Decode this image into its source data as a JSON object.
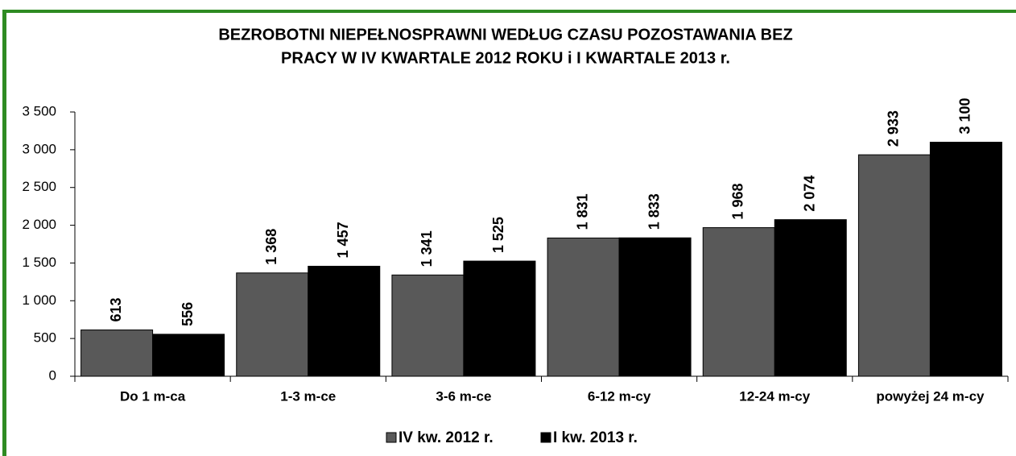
{
  "chart_data": {
    "type": "bar",
    "title": [
      "BEZROBOTNI NIEPEŁNOSPRAWNI WEDŁUG  CZASU POZOSTAWANIA BEZ",
      "PRACY W IV KWARTALE 2012 ROKU i I KWARTALE 2013 r."
    ],
    "categories": [
      "Do 1 m-ca",
      "1-3 m-ce",
      "3-6 m-ce",
      "6-12 m-cy",
      "12-24 m-cy",
      "powyżej 24 m-cy"
    ],
    "series": [
      {
        "name": "IV kw. 2012 r.",
        "color": "#595959",
        "values": [
          613,
          1368,
          1341,
          1831,
          1968,
          2933
        ],
        "value_labels": [
          "613",
          "1 368",
          "1 341",
          "1 831",
          "1 968",
          "2 933"
        ]
      },
      {
        "name": "I kw. 2013 r.",
        "color": "#000000",
        "values": [
          556,
          1457,
          1525,
          1833,
          2074,
          3100
        ],
        "value_labels": [
          "556",
          "1 457",
          "1 525",
          "1 833",
          "2 074",
          "3 100"
        ]
      }
    ],
    "ylim": [
      0,
      3500
    ],
    "yticks": [
      0,
      500,
      {
        "value": 1000,
        "label": "1 000"
      },
      {
        "value": 1500,
        "label": "1 500"
      },
      {
        "value": 2000,
        "label": "2 000"
      },
      {
        "value": 2500,
        "label": "2 500"
      },
      {
        "value": 3000,
        "label": "3 000"
      },
      {
        "value": 3500,
        "label": "3 500"
      }
    ],
    "legend": "bottom"
  }
}
